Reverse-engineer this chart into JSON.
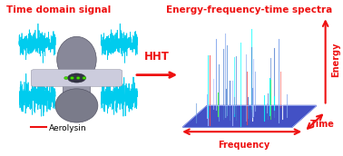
{
  "title_left": "Time domain signal",
  "title_right": "Energy-frequency-time spectra",
  "label_aerolysin": "Aerolysin",
  "label_hht": "HHT",
  "label_frequency": "Frequency",
  "label_time": "Time",
  "label_energy": "Energy",
  "bg_color": "#ffffff",
  "red_color": "#ee1111",
  "cyan_color": "#00ccee",
  "green_color": "#44dd00",
  "blue_color": "#3355cc",
  "title_fontsize": 7.5,
  "label_fontsize": 7.0,
  "signal_amplitude": 0.06,
  "signal_noise": 0.02
}
